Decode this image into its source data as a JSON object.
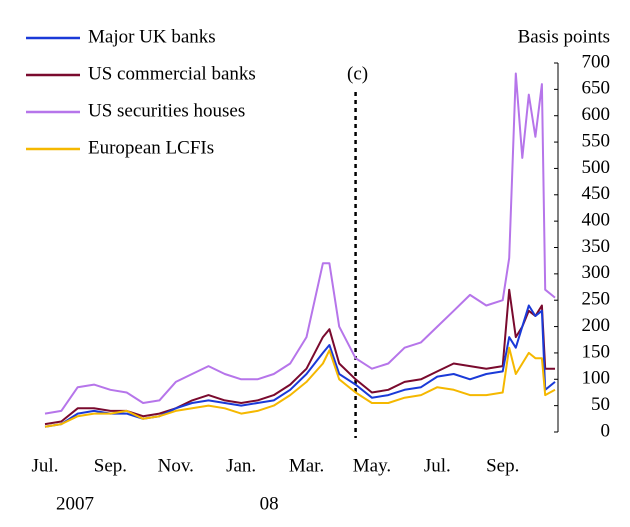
{
  "chart_data": {
    "type": "line",
    "y_axis_label": "Basis points",
    "x": [
      0,
      0.5,
      1,
      1.5,
      2,
      2.5,
      3,
      3.5,
      4,
      4.5,
      5,
      5.5,
      6,
      6.5,
      7,
      7.5,
      8,
      8.5,
      8.7,
      9,
      9.5,
      10,
      10.5,
      11,
      11.5,
      12,
      12.5,
      13,
      13.5,
      14,
      14.2,
      14.4,
      14.6,
      14.8,
      15.0,
      15.2,
      15.3,
      15.6
    ],
    "series": [
      {
        "name": "Major UK banks",
        "color": "#1a3ad8",
        "values": [
          10,
          15,
          35,
          40,
          35,
          35,
          25,
          30,
          45,
          55,
          60,
          55,
          50,
          55,
          60,
          80,
          110,
          150,
          165,
          110,
          90,
          65,
          70,
          80,
          85,
          105,
          110,
          100,
          110,
          115,
          180,
          160,
          200,
          240,
          220,
          230,
          80,
          95
        ]
      },
      {
        "name": "US commercial banks",
        "color": "#7a0a2e",
        "values": [
          15,
          20,
          45,
          45,
          40,
          40,
          30,
          35,
          45,
          60,
          70,
          60,
          55,
          60,
          70,
          90,
          120,
          180,
          195,
          130,
          100,
          75,
          80,
          95,
          100,
          115,
          130,
          125,
          120,
          125,
          270,
          180,
          200,
          230,
          220,
          240,
          120,
          120
        ]
      },
      {
        "name": "US securities houses",
        "color": "#b675ea",
        "values": [
          35,
          40,
          85,
          90,
          80,
          75,
          55,
          60,
          95,
          110,
          125,
          110,
          100,
          100,
          110,
          130,
          180,
          320,
          320,
          200,
          140,
          120,
          130,
          160,
          170,
          200,
          230,
          260,
          240,
          250,
          330,
          680,
          520,
          640,
          560,
          660,
          270,
          255
        ]
      },
      {
        "name": "European LCFIs",
        "color": "#f5b800",
        "values": [
          10,
          15,
          30,
          35,
          35,
          40,
          25,
          30,
          40,
          45,
          50,
          45,
          35,
          40,
          50,
          70,
          95,
          130,
          155,
          100,
          75,
          55,
          55,
          65,
          70,
          85,
          80,
          70,
          70,
          75,
          160,
          110,
          130,
          150,
          140,
          140,
          70,
          80
        ]
      }
    ],
    "xlim": [
      0,
      15.6
    ],
    "xticks": [
      {
        "value": 0,
        "label": "Jul."
      },
      {
        "value": 2,
        "label": "Sep."
      },
      {
        "value": 4,
        "label": "Nov."
      },
      {
        "value": 6,
        "label": "Jan."
      },
      {
        "value": 8,
        "label": "Mar."
      },
      {
        "value": 10,
        "label": "May."
      },
      {
        "value": 12,
        "label": "Jul."
      },
      {
        "value": 14,
        "label": "Sep."
      }
    ],
    "year_labels": [
      {
        "value": 0,
        "label": "2007"
      },
      {
        "value": 6,
        "label": "08"
      }
    ],
    "ylim": [
      0,
      700
    ],
    "yticks": [
      0,
      50,
      100,
      150,
      200,
      250,
      300,
      350,
      400,
      450,
      500,
      550,
      600,
      650,
      700
    ],
    "annotations": [
      {
        "text": "(c)",
        "x": 9.5
      }
    ]
  }
}
